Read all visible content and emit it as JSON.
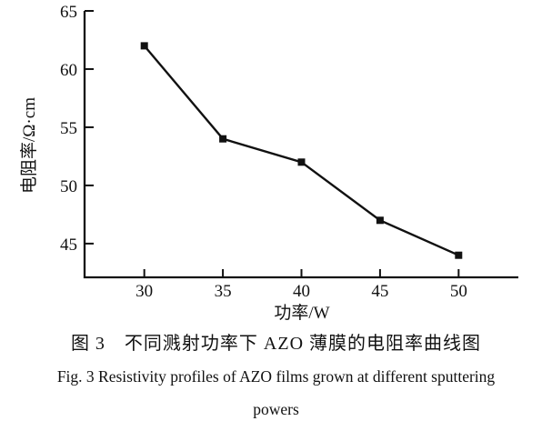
{
  "page": {
    "background_color": "#ffffff",
    "text_color": "#111111"
  },
  "chart_data": {
    "type": "line",
    "x": [
      30,
      35,
      40,
      45,
      50
    ],
    "series": [
      {
        "name": "resistivity",
        "values": [
          62,
          54,
          52,
          47,
          44
        ]
      }
    ],
    "title": "",
    "xlabel": "功率/W",
    "ylabel": "电阻率/Ω·cm",
    "xticks": [
      30,
      35,
      40,
      45,
      50
    ],
    "yticks": [
      45,
      50,
      55,
      60,
      65
    ],
    "xlim": [
      26.2,
      53.8
    ],
    "ylim": [
      42.1,
      65
    ],
    "grid": false,
    "legend": "none",
    "marker": "filled-square",
    "line_color": "#111111",
    "marker_color": "#111111"
  },
  "captions": {
    "zh": "图 3　不同溅射功率下 AZO 薄膜的电阻率曲线图",
    "en_line1": "Fig. 3   Resistivity profiles of AZO films grown at different sputtering",
    "en_line2": "powers"
  }
}
